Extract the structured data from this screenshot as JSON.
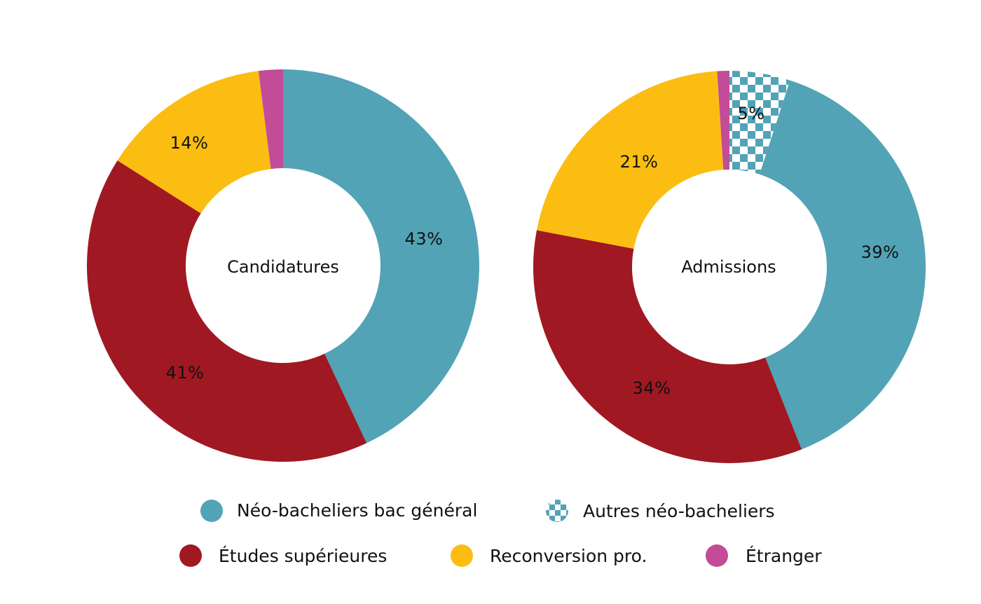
{
  "chart_data": [
    {
      "type": "pie",
      "variant": "donut",
      "title": "Candidatures",
      "categories": [
        "Néo-bacheliers bac général",
        "Autres néo-bacheliers",
        "Études supérieures",
        "Reconversion pro.",
        "Étranger"
      ],
      "values": [
        43,
        0,
        41,
        14,
        2
      ],
      "value_labels": [
        "43%",
        "",
        "41%",
        "14%",
        ""
      ]
    },
    {
      "type": "pie",
      "variant": "donut",
      "title": "Admissions",
      "categories": [
        "Néo-bacheliers bac général",
        "Autres néo-bacheliers",
        "Études supérieures",
        "Reconversion pro.",
        "Étranger"
      ],
      "values": [
        39,
        5,
        34,
        21,
        1
      ],
      "value_labels": [
        "39%",
        "5%",
        "34%",
        "21%",
        ""
      ]
    }
  ],
  "legend": [
    {
      "label": "Néo-bacheliers bac général",
      "color": "#52A3B6",
      "pattern": "solid"
    },
    {
      "label": "Autres néo-bacheliers",
      "color": "#52A3B6",
      "pattern": "checker"
    },
    {
      "label": "Études supérieures",
      "color": "#A01822",
      "pattern": "solid"
    },
    {
      "label": "Reconversion pro.",
      "color": "#FBBD12",
      "pattern": "solid"
    },
    {
      "label": "Étranger",
      "color": "#C24C98",
      "pattern": "solid"
    }
  ],
  "colors": {
    "Néo-bacheliers bac général": "#52A3B6",
    "Autres néo-bacheliers": "#52A3B6",
    "Études supérieures": "#A01822",
    "Reconversion pro.": "#FBBD12",
    "Étranger": "#C24C98"
  }
}
